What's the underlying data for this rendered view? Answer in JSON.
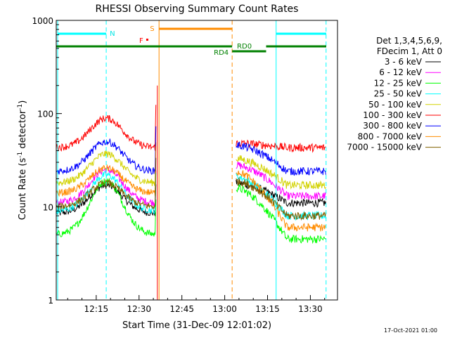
{
  "chart_data": {
    "type": "line",
    "title": "RHESSI Observing Summary Count Rates",
    "xlabel": "Start Time (31-Dec-09 12:01:02)",
    "ylabel_main": "Count Rate (s",
    "ylabel_sup1": "-1",
    "ylabel_mid": " detector",
    "ylabel_sup2": "-1",
    "ylabel_end": ")",
    "yscale": "log",
    "ylim": [
      1,
      1000
    ],
    "xlim_minutes": [
      0,
      98.5
    ],
    "x_ticks": [
      {
        "t": 14,
        "label": "12:15"
      },
      {
        "t": 29,
        "label": "12:30"
      },
      {
        "t": 44,
        "label": "12:45"
      },
      {
        "t": 59,
        "label": "13:00"
      },
      {
        "t": 74,
        "label": "13:15"
      },
      {
        "t": 89,
        "label": "13:30"
      }
    ],
    "y_ticks": [
      {
        "v": 1,
        "label": "1"
      },
      {
        "v": 10,
        "label": "10"
      },
      {
        "v": 100,
        "label": "100"
      },
      {
        "v": 1000,
        "label": "1000"
      }
    ],
    "legend": {
      "header": [
        "Det 1,3,4,5,6,9,",
        "FDecim 1, Att 0"
      ],
      "placement": "right"
    },
    "series": [
      {
        "name": "3 - 6 keV",
        "color": "#000000",
        "pre_base": 8.5,
        "pre_peak": 17,
        "post_start": 18,
        "post_end": 11
      },
      {
        "name": "6 - 12 keV",
        "color": "#ff00ff",
        "pre_base": 11,
        "pre_peak": 25,
        "post_start": 28,
        "post_end": 13
      },
      {
        "name": "12 - 25 keV",
        "color": "#00ff00",
        "pre_base": 5,
        "pre_peak": 19,
        "post_start": 16,
        "post_end": 4.5
      },
      {
        "name": "25 - 50 keV",
        "color": "#00ffff",
        "pre_base": 9,
        "pre_peak": 22,
        "post_start": 21,
        "post_end": 8
      },
      {
        "name": "50 - 100 keV",
        "color": "#d2d200",
        "pre_base": 18,
        "pre_peak": 37,
        "post_start": 33,
        "post_end": 17
      },
      {
        "name": "100 - 300 keV",
        "color": "#ff0000",
        "pre_base": 43,
        "pre_peak": 89,
        "post_start": 48,
        "post_end": 43
      },
      {
        "name": "300 - 800 keV",
        "color": "#0000ff",
        "pre_base": 24,
        "pre_peak": 50,
        "post_start": 46,
        "post_end": 24
      },
      {
        "name": "800 - 7000 keV",
        "color": "#ff8c00",
        "pre_base": 14,
        "pre_peak": 26,
        "post_start": 24,
        "post_end": 6
      },
      {
        "name": "7000 - 15000 keV",
        "color": "#806000",
        "pre_base": 10,
        "pre_peak": 18,
        "post_start": 19,
        "post_end": 8
      }
    ],
    "annotations": {
      "night_label": "N",
      "saa_label": "S",
      "flare_label": "F",
      "rd0_label": "RD0",
      "rd4_label": "RD4"
    },
    "timestamp": "17-Oct-2021 01:00"
  }
}
